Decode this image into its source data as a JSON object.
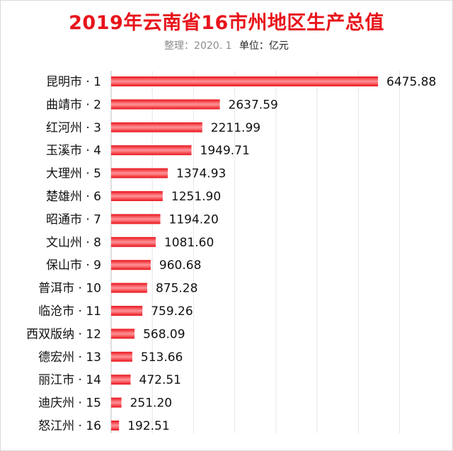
{
  "title": "2019年云南省16市州地区生产总值",
  "subtitle": {
    "note": "整理：2020. 1",
    "unit": "单位：亿元"
  },
  "colors": {
    "bar": "#e8141b",
    "bar_highlight": "#ff8a8e",
    "title": "#e8141b"
  },
  "chart_data": {
    "type": "bar",
    "orientation": "horizontal",
    "title": "2019年云南省16市州地区生产总值",
    "unit": "亿元",
    "xlim": [
      0,
      7000
    ],
    "grid": true,
    "categories": [
      "昆明市 · 1",
      "曲靖市 · 2",
      "红河州 · 3",
      "玉溪市 · 4",
      "大理州 · 5",
      "楚雄州 · 6",
      "昭通市 · 7",
      "文山州 · 8",
      "保山市 · 9",
      "普洱市 · 10",
      "临沧市 · 11",
      "西双版纳 · 12",
      "德宏州 · 13",
      "丽江市 · 14",
      "迪庆州 · 15",
      "怒江州 · 16"
    ],
    "values": [
      6475.88,
      2637.59,
      2211.99,
      1949.71,
      1374.93,
      1251.9,
      1194.2,
      1081.6,
      960.68,
      875.28,
      759.26,
      568.09,
      513.66,
      472.51,
      251.2,
      192.51
    ],
    "value_labels": [
      "6475.88",
      "2637.59",
      "2211.99",
      "1949.71",
      "1374.93",
      "1251.90",
      "1194.20",
      "1081.60",
      "960.68",
      "875.28",
      "759.26",
      "568.09",
      "513.66",
      "472.51",
      "251.20",
      "192.51"
    ]
  }
}
